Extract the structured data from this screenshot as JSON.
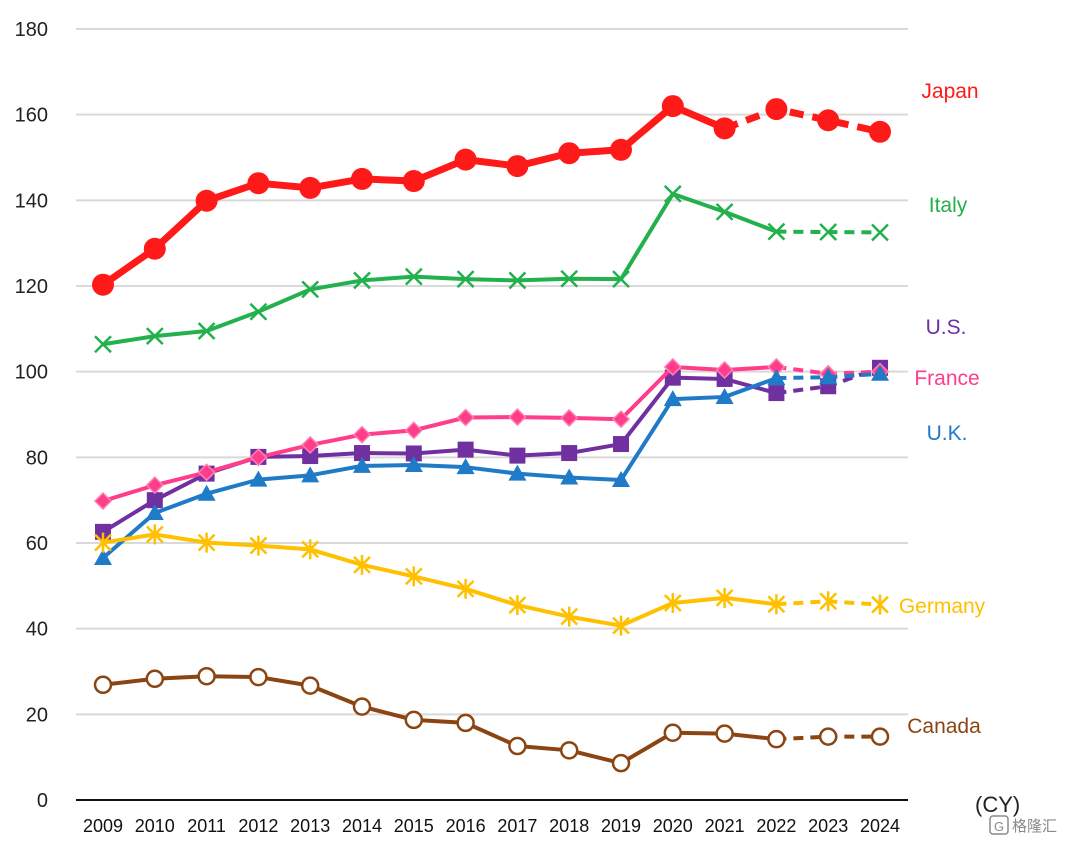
{
  "chart_data": {
    "type": "line",
    "title": "",
    "xlabel": "(CY)",
    "ylabel": "",
    "ylim": [
      0,
      180
    ],
    "yticks": [
      0,
      20,
      40,
      60,
      80,
      100,
      120,
      140,
      160,
      180
    ],
    "grid": true,
    "categories": [
      "2009",
      "2010",
      "2011",
      "2012",
      "2013",
      "2014",
      "2015",
      "2016",
      "2017",
      "2018",
      "2019",
      "2020",
      "2021",
      "2022",
      "2023",
      "2024"
    ],
    "series": [
      {
        "name": "Japan",
        "color": "#ff1a1a",
        "marker": "circle-filled",
        "dashed_from_index": 12,
        "values": [
          120.3,
          128.7,
          139.9,
          144.0,
          142.9,
          145.0,
          144.5,
          149.5,
          148.0,
          151.0,
          151.8,
          162.0,
          156.8,
          161.3,
          158.7,
          156.0
        ]
      },
      {
        "name": "Italy",
        "color": "#22b14c",
        "marker": "x",
        "dashed_from_index": 13,
        "values": [
          106.4,
          108.3,
          109.5,
          114.0,
          119.2,
          121.3,
          122.2,
          121.6,
          121.3,
          121.7,
          121.6,
          141.5,
          137.3,
          132.7,
          132.6,
          132.5
        ]
      },
      {
        "name": "U.S.",
        "color": "#7030a0",
        "marker": "square",
        "dashed_from_index": 13,
        "values": [
          62.6,
          70.0,
          76.2,
          80.1,
          80.3,
          81.0,
          80.9,
          81.8,
          80.4,
          81.0,
          83.1,
          98.6,
          98.3,
          95.0,
          96.6,
          100.9
        ]
      },
      {
        "name": "France",
        "color": "#ff3d8b",
        "marker": "diamond",
        "dashed_from_index": 13,
        "values": [
          69.8,
          73.5,
          76.5,
          80.0,
          82.9,
          85.3,
          86.3,
          89.3,
          89.4,
          89.2,
          88.9,
          101.1,
          100.4,
          101.1,
          99.5,
          100.0
        ]
      },
      {
        "name": "U.K.",
        "color": "#1f7ac7",
        "marker": "triangle",
        "dashed_from_index": 13,
        "values": [
          56.5,
          67.0,
          71.5,
          74.8,
          75.8,
          78.0,
          78.2,
          77.7,
          76.2,
          75.3,
          74.7,
          93.6,
          94.1,
          98.5,
          98.7,
          99.5
        ]
      },
      {
        "name": "Germany",
        "color": "#ffc000",
        "marker": "asterisk",
        "dashed_from_index": 13,
        "values": [
          60.1,
          62.0,
          60.1,
          59.4,
          58.5,
          54.9,
          52.2,
          49.3,
          45.5,
          42.8,
          40.7,
          46.0,
          47.2,
          45.7,
          46.4,
          45.6
        ]
      },
      {
        "name": "Canada",
        "color": "#8b4513",
        "marker": "circle-open",
        "dashed_from_index": 13,
        "values": [
          26.9,
          28.3,
          28.9,
          28.7,
          26.7,
          21.8,
          18.7,
          18.0,
          12.6,
          11.6,
          8.6,
          15.7,
          15.5,
          14.2,
          14.8,
          14.8
        ]
      }
    ]
  },
  "watermark": "格隆汇"
}
